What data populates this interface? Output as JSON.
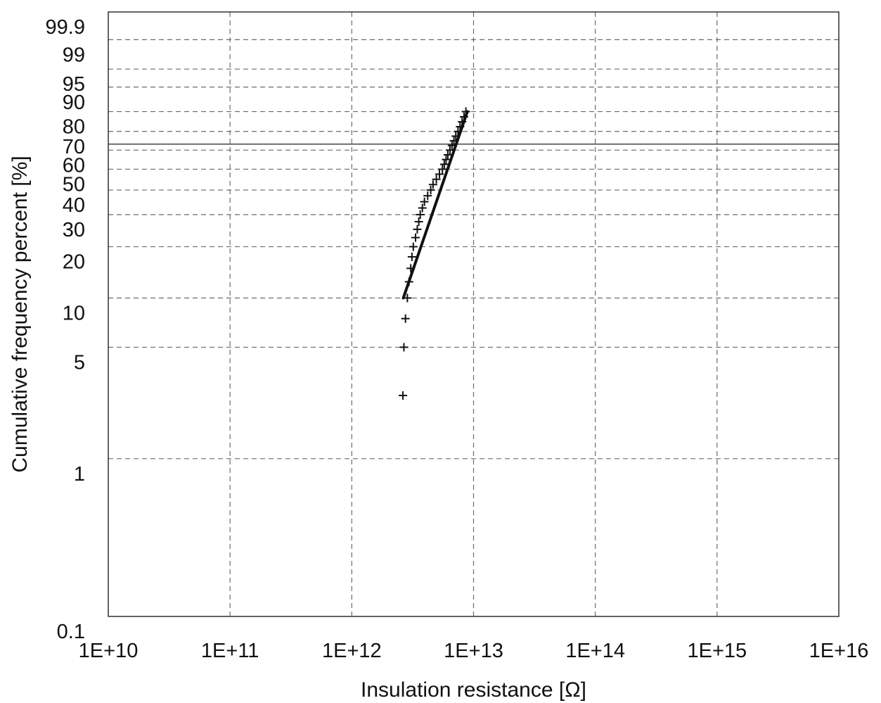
{
  "chart_data": {
    "type": "scatter",
    "title": "",
    "xlabel": "Insulation resistance [Ω]",
    "ylabel": "Cumulative frequency percent [%]",
    "x_scale": "log",
    "y_scale": "probability (Weibull)",
    "xlim": [
      10000000000,
      10000000000000000
    ],
    "ylim": [
      0.1,
      99.9
    ],
    "grid": true,
    "x_ticks": [
      {
        "value": 10000000000,
        "label": "1E+10"
      },
      {
        "value": 100000000000,
        "label": "1E+11"
      },
      {
        "value": 1000000000000,
        "label": "1E+12"
      },
      {
        "value": 10000000000000,
        "label": "1E+13"
      },
      {
        "value": 100000000000000,
        "label": "1E+14"
      },
      {
        "value": 1000000000000000,
        "label": "1E+15"
      },
      {
        "value": 10000000000000000,
        "label": "1E+16"
      }
    ],
    "y_ticks": [
      {
        "value": 0.1,
        "label": "0.1"
      },
      {
        "value": 1,
        "label": "1"
      },
      {
        "value": 5,
        "label": "5"
      },
      {
        "value": 10,
        "label": "10"
      },
      {
        "value": 20,
        "label": "20"
      },
      {
        "value": 30,
        "label": "30"
      },
      {
        "value": 40,
        "label": "40"
      },
      {
        "value": 50,
        "label": "50"
      },
      {
        "value": 60,
        "label": "60"
      },
      {
        "value": 70,
        "label": "70"
      },
      {
        "value": 80,
        "label": "80"
      },
      {
        "value": 90,
        "label": "90"
      },
      {
        "value": 95,
        "label": "95"
      },
      {
        "value": 99,
        "label": "99"
      },
      {
        "value": 99.9,
        "label": "99.9"
      }
    ],
    "median_reference": 63.2,
    "series": [
      {
        "marker": "+",
        "points": [
          {
            "x": 2630000000000,
            "y": 2.5
          },
          {
            "x": 2680000000000,
            "y": 5.0
          },
          {
            "x": 2760000000000,
            "y": 7.5
          },
          {
            "x": 2860000000000,
            "y": 10.0
          },
          {
            "x": 2950000000000,
            "y": 12.5
          },
          {
            "x": 3050000000000,
            "y": 15.0
          },
          {
            "x": 3120000000000,
            "y": 17.5
          },
          {
            "x": 3200000000000,
            "y": 20.0
          },
          {
            "x": 3340000000000,
            "y": 22.5
          },
          {
            "x": 3450000000000,
            "y": 25.0
          },
          {
            "x": 3550000000000,
            "y": 27.5
          },
          {
            "x": 3650000000000,
            "y": 30.0
          },
          {
            "x": 3800000000000,
            "y": 32.5
          },
          {
            "x": 3950000000000,
            "y": 35.0
          },
          {
            "x": 4200000000000,
            "y": 37.5
          },
          {
            "x": 4450000000000,
            "y": 40.0
          },
          {
            "x": 4650000000000,
            "y": 42.5
          },
          {
            "x": 4950000000000,
            "y": 45.0
          },
          {
            "x": 5250000000000,
            "y": 47.5
          },
          {
            "x": 5550000000000,
            "y": 50.0
          },
          {
            "x": 5750000000000,
            "y": 52.5
          },
          {
            "x": 5950000000000,
            "y": 55.0
          },
          {
            "x": 6150000000000,
            "y": 57.5
          },
          {
            "x": 6400000000000,
            "y": 60.0
          },
          {
            "x": 6650000000000,
            "y": 62.5
          },
          {
            "x": 6900000000000,
            "y": 65.0
          },
          {
            "x": 7150000000000,
            "y": 67.5
          },
          {
            "x": 7450000000000,
            "y": 70.0
          },
          {
            "x": 7750000000000,
            "y": 72.5
          },
          {
            "x": 8050000000000,
            "y": 75.0
          },
          {
            "x": 8350000000000,
            "y": 77.5
          },
          {
            "x": 8650000000000,
            "y": 80.0
          }
        ]
      }
    ],
    "fit_line": [
      {
        "x": 2650000000000,
        "y": 10.0
      },
      {
        "x": 8900000000000,
        "y": 80.0
      }
    ]
  }
}
